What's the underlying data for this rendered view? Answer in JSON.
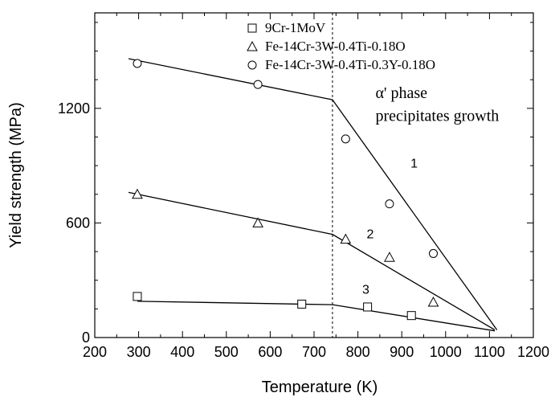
{
  "chart_data": {
    "type": "scatter",
    "xlabel": "Temperature (K)",
    "ylabel": "Yield strength (MPa)",
    "xlim": [
      200,
      1200
    ],
    "ylim": [
      0,
      1700
    ],
    "x_major_ticks": [
      200,
      300,
      400,
      500,
      600,
      700,
      800,
      900,
      1000,
      1100,
      1200
    ],
    "x_tick_labels": [
      "200",
      "300",
      "400",
      "500",
      "600",
      "700",
      "800",
      "900",
      "1000",
      "1100",
      "1200"
    ],
    "y_major_ticks": [
      0,
      600,
      1200
    ],
    "y_tick_labels": [
      "0",
      "600",
      "1200"
    ],
    "y_minor_step": 150,
    "x_minor_step": 50,
    "legend_position": "top-right",
    "series": [
      {
        "name": "9Cr-1MoV",
        "marker": "square",
        "points": [
          [
            297,
            215
          ],
          [
            672,
            175
          ],
          [
            822,
            160
          ],
          [
            922,
            115
          ]
        ],
        "fit": [
          [
            297,
            190
          ],
          [
            742,
            172
          ],
          [
            1112,
            35
          ]
        ],
        "label": "3",
        "label_at": [
          810,
          230
        ]
      },
      {
        "name": "Fe-14Cr-3W-0.4Ti-0.18O",
        "marker": "triangle",
        "points": [
          [
            297,
            750
          ],
          [
            572,
            600
          ],
          [
            772,
            515
          ],
          [
            872,
            420
          ],
          [
            972,
            185
          ]
        ],
        "fit": [
          [
            277,
            760
          ],
          [
            742,
            540
          ],
          [
            1112,
            40
          ]
        ],
        "label": "2",
        "label_at": [
          820,
          520
        ]
      },
      {
        "name": "Fe-14Cr-3W-0.4Ti-0.3Y-0.18O",
        "marker": "circle",
        "points": [
          [
            297,
            1435
          ],
          [
            572,
            1325
          ],
          [
            772,
            1040
          ],
          [
            872,
            700
          ],
          [
            972,
            440
          ]
        ],
        "fit": [
          [
            277,
            1460
          ],
          [
            742,
            1245
          ],
          [
            1117,
            40
          ]
        ],
        "label": "1",
        "label_at": [
          920,
          890
        ]
      }
    ],
    "vline": {
      "x": 742
    },
    "annotation": [
      "α' phase",
      "precipitates growth"
    ],
    "annotation_at": [
      [
        840,
        1255
      ],
      [
        840,
        1135
      ]
    ]
  }
}
